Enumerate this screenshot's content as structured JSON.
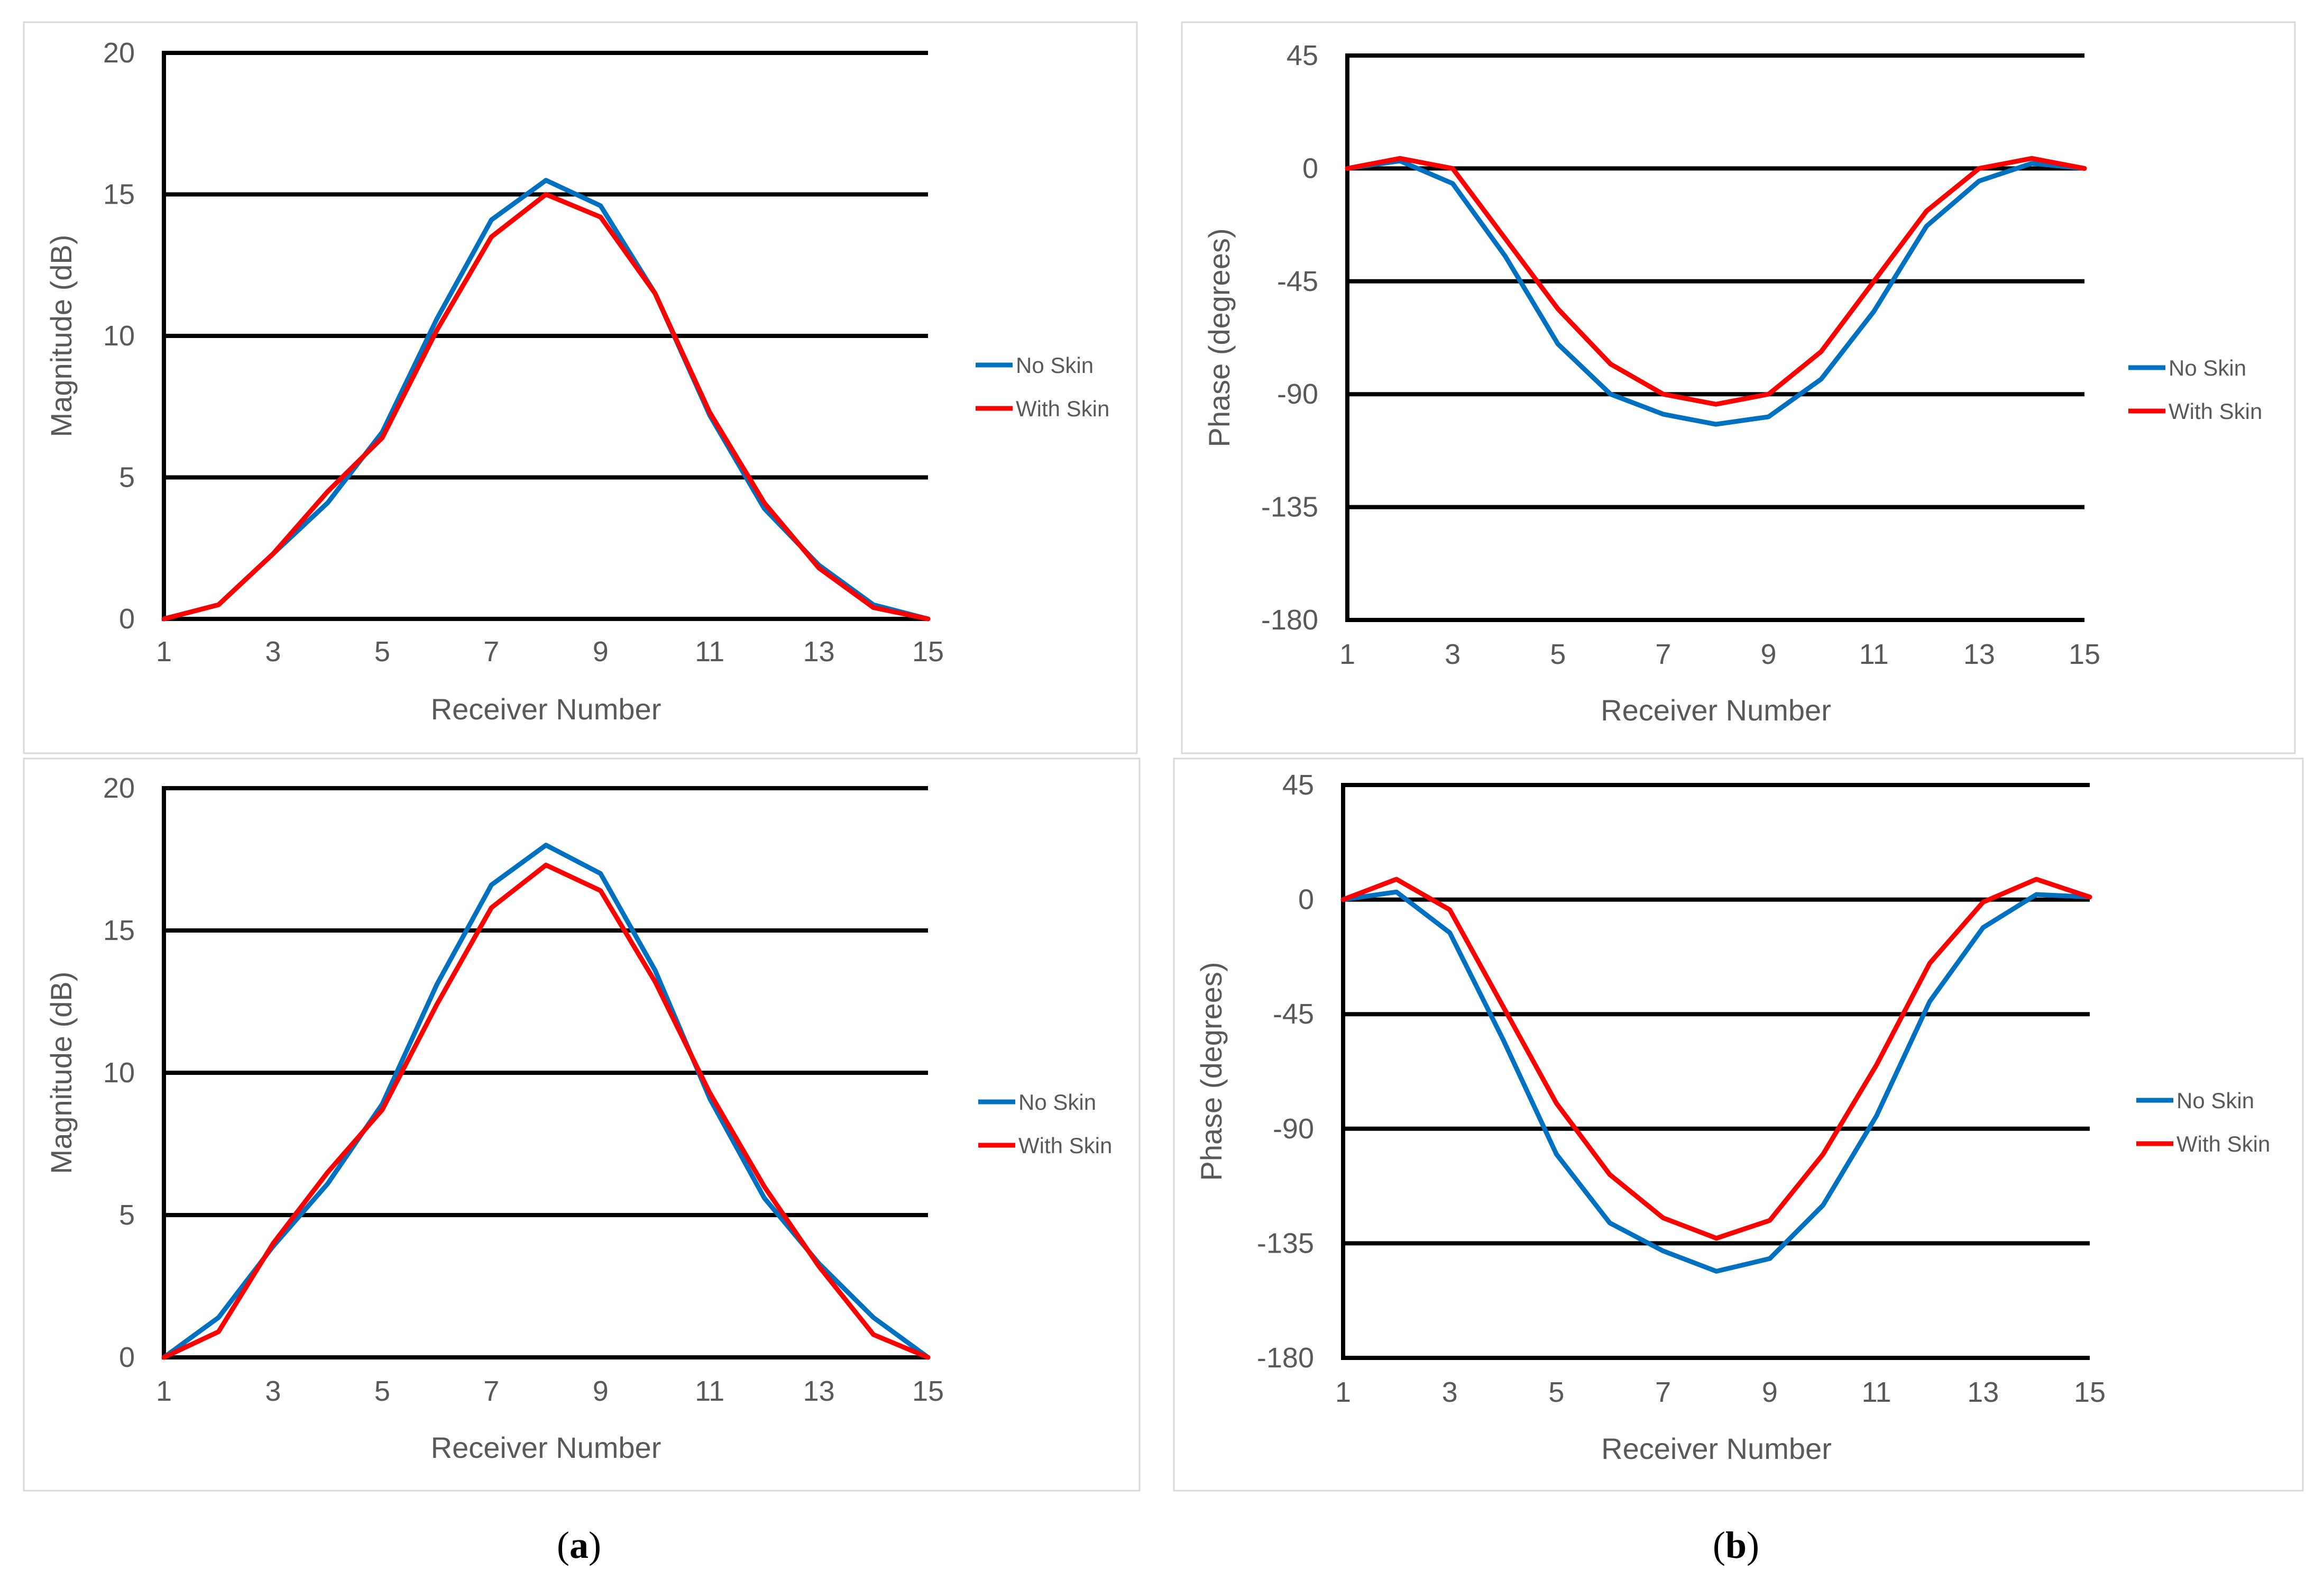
{
  "colors": {
    "no_skin": "#0070c0",
    "with_skin": "#ff0000"
  },
  "captions": {
    "left": {
      "open": "(",
      "letter": "a",
      "close": ")"
    },
    "right": {
      "open": "(",
      "letter": "b",
      "close": ")"
    }
  },
  "chart_data": [
    {
      "id": "a-top",
      "type": "line",
      "xlabel": "Receiver Number",
      "ylabel": "Magnitude (dB)",
      "xlim": [
        1,
        15
      ],
      "ylim": [
        0,
        20
      ],
      "xticks": [
        1,
        3,
        5,
        7,
        9,
        11,
        13,
        15
      ],
      "yticks": [
        0,
        5,
        10,
        15,
        20
      ],
      "x": [
        1,
        2,
        3,
        4,
        5,
        6,
        7,
        8,
        9,
        10,
        11,
        12,
        13,
        14,
        15
      ],
      "series": [
        {
          "name": "No Skin",
          "color": "#0070c0",
          "values": [
            0,
            0.5,
            2.3,
            4.1,
            6.6,
            10.6,
            14.1,
            15.5,
            14.6,
            11.5,
            7.2,
            3.9,
            1.9,
            0.5,
            0
          ]
        },
        {
          "name": "With Skin",
          "color": "#ff0000",
          "values": [
            0,
            0.5,
            2.3,
            4.5,
            6.4,
            10.2,
            13.5,
            15.0,
            14.2,
            11.5,
            7.3,
            4.1,
            1.8,
            0.4,
            0
          ]
        }
      ],
      "legend": [
        "No Skin",
        "With Skin"
      ]
    },
    {
      "id": "b-top",
      "type": "line",
      "xlabel": "Receiver Number",
      "ylabel": "Phase (degrees)",
      "xlim": [
        1,
        15
      ],
      "ylim": [
        -180,
        45
      ],
      "xticks": [
        1,
        3,
        5,
        7,
        9,
        11,
        13,
        15
      ],
      "yticks": [
        45,
        0,
        -45,
        -90,
        -135,
        -180
      ],
      "x": [
        1,
        2,
        3,
        4,
        5,
        6,
        7,
        8,
        9,
        10,
        11,
        12,
        13,
        14,
        15
      ],
      "series": [
        {
          "name": "No Skin",
          "color": "#0070c0",
          "values": [
            0,
            3,
            -6,
            -35,
            -70,
            -90,
            -98,
            -102,
            -99,
            -84,
            -57,
            -23,
            -5,
            2,
            0
          ]
        },
        {
          "name": "With Skin",
          "color": "#ff0000",
          "values": [
            0,
            4,
            0,
            -28,
            -56,
            -78,
            -90,
            -94,
            -90,
            -73,
            -45,
            -17,
            0,
            4,
            0
          ]
        }
      ],
      "legend": [
        "No Skin",
        "With Skin"
      ]
    },
    {
      "id": "a-bottom",
      "type": "line",
      "xlabel": "Receiver Number",
      "ylabel": "Magnitude (dB)",
      "xlim": [
        1,
        15
      ],
      "ylim": [
        0,
        20
      ],
      "xticks": [
        1,
        3,
        5,
        7,
        9,
        11,
        13,
        15
      ],
      "yticks": [
        0,
        5,
        10,
        15,
        20
      ],
      "x": [
        1,
        2,
        3,
        4,
        5,
        6,
        7,
        8,
        9,
        10,
        11,
        12,
        13,
        14,
        15
      ],
      "series": [
        {
          "name": "No Skin",
          "color": "#0070c0",
          "values": [
            0,
            1.4,
            3.9,
            6.1,
            8.9,
            13.1,
            16.6,
            18.0,
            17.0,
            13.6,
            9.1,
            5.6,
            3.3,
            1.4,
            0
          ]
        },
        {
          "name": "With Skin",
          "color": "#ff0000",
          "values": [
            0,
            0.9,
            4.0,
            6.5,
            8.7,
            12.4,
            15.8,
            17.3,
            16.4,
            13.2,
            9.3,
            6.0,
            3.2,
            0.8,
            0
          ]
        }
      ],
      "legend": [
        "No Skin",
        "With Skin"
      ]
    },
    {
      "id": "b-bottom",
      "type": "line",
      "xlabel": "Receiver Number",
      "ylabel": "Phase (degrees)",
      "xlim": [
        1,
        15
      ],
      "ylim": [
        -180,
        45
      ],
      "xticks": [
        1,
        3,
        5,
        7,
        9,
        11,
        13,
        15
      ],
      "yticks": [
        45,
        0,
        -45,
        -90,
        -135,
        -180
      ],
      "x": [
        1,
        2,
        3,
        4,
        5,
        6,
        7,
        8,
        9,
        10,
        11,
        12,
        13,
        14,
        15
      ],
      "series": [
        {
          "name": "No Skin",
          "color": "#0070c0",
          "values": [
            0,
            3,
            -13,
            -55,
            -100,
            -127,
            -138,
            -146,
            -141,
            -120,
            -85,
            -40,
            -11,
            2,
            1
          ]
        },
        {
          "name": "With Skin",
          "color": "#ff0000",
          "values": [
            0,
            8,
            -4,
            -42,
            -80,
            -108,
            -125,
            -133,
            -126,
            -100,
            -65,
            -25,
            -1,
            8,
            1
          ]
        }
      ],
      "legend": [
        "No Skin",
        "With Skin"
      ]
    }
  ]
}
